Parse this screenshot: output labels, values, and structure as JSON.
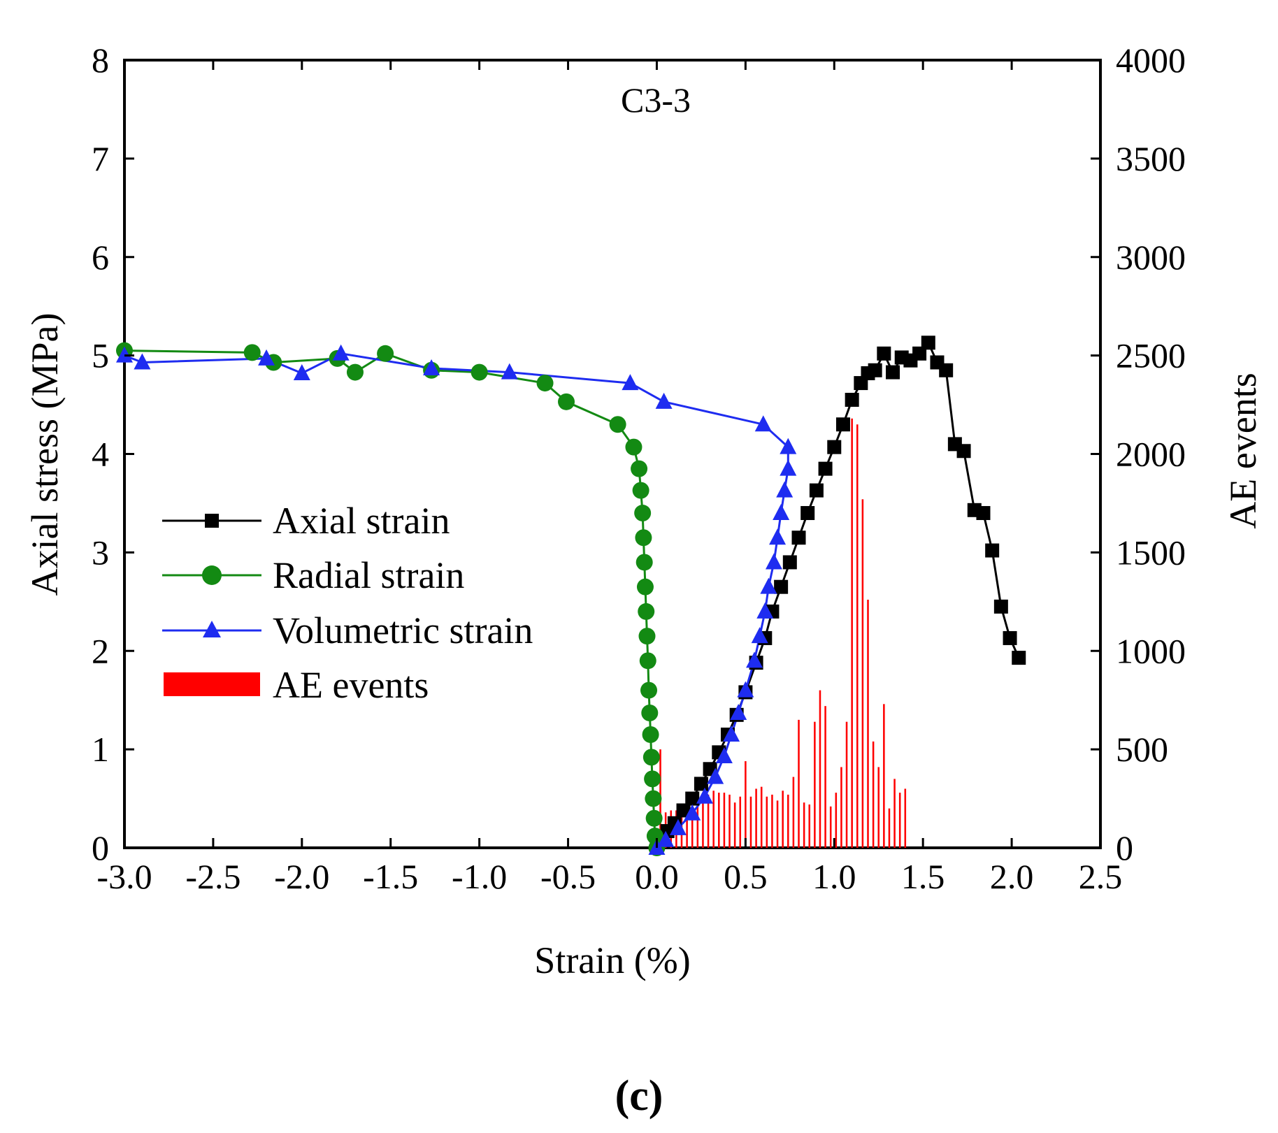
{
  "chart_data": {
    "type": "line+bar",
    "annotation": "C3-3",
    "panel_label": "(c)",
    "xlabel": "Strain (%)",
    "ylabel_left": "Axial stress (MPa)",
    "ylabel_right": "AE events",
    "xlim": [
      -3.0,
      2.5
    ],
    "ylim_left": [
      0,
      8
    ],
    "ylim_right": [
      0,
      4000
    ],
    "x_ticks": [
      -3.0,
      -2.5,
      -2.0,
      -1.5,
      -1.0,
      -0.5,
      0.0,
      0.5,
      1.0,
      1.5,
      2.0,
      2.5
    ],
    "x_tick_labels": [
      "-3.0",
      "-2.5",
      "-2.0",
      "-1.5",
      "-1.0",
      "-0.5",
      "0.0",
      "0.5",
      "1.0",
      "1.5",
      "2.0",
      "2.5"
    ],
    "y_left_ticks": [
      0,
      1,
      2,
      3,
      4,
      5,
      6,
      7,
      8
    ],
    "y_left_tick_labels": [
      "0",
      "1",
      "2",
      "3",
      "4",
      "5",
      "6",
      "7",
      "8"
    ],
    "y_right_ticks": [
      0,
      500,
      1000,
      1500,
      2000,
      2500,
      3000,
      3500,
      4000
    ],
    "y_right_tick_labels": [
      "0",
      "500",
      "1000",
      "1500",
      "2000",
      "2500",
      "3000",
      "3500",
      "4000"
    ],
    "legend": {
      "position": "center-left",
      "entries": [
        "Axial strain",
        "Radial strain",
        "Volumetric strain",
        "AE events"
      ]
    },
    "series": [
      {
        "name": "Axial strain",
        "marker": "square",
        "color": "#000000",
        "points": [
          [
            0.0,
            0.0
          ],
          [
            0.03,
            0.08
          ],
          [
            0.06,
            0.17
          ],
          [
            0.1,
            0.25
          ],
          [
            0.15,
            0.38
          ],
          [
            0.2,
            0.5
          ],
          [
            0.25,
            0.65
          ],
          [
            0.3,
            0.8
          ],
          [
            0.35,
            0.97
          ],
          [
            0.4,
            1.15
          ],
          [
            0.45,
            1.35
          ],
          [
            0.5,
            1.58
          ],
          [
            0.56,
            1.88
          ],
          [
            0.61,
            2.13
          ],
          [
            0.65,
            2.4
          ],
          [
            0.7,
            2.65
          ],
          [
            0.75,
            2.9
          ],
          [
            0.8,
            3.15
          ],
          [
            0.85,
            3.4
          ],
          [
            0.9,
            3.63
          ],
          [
            0.95,
            3.85
          ],
          [
            1.0,
            4.07
          ],
          [
            1.05,
            4.3
          ],
          [
            1.1,
            4.55
          ],
          [
            1.15,
            4.72
          ],
          [
            1.19,
            4.82
          ],
          [
            1.23,
            4.85
          ],
          [
            1.28,
            5.02
          ],
          [
            1.33,
            4.83
          ],
          [
            1.38,
            4.98
          ],
          [
            1.43,
            4.95
          ],
          [
            1.48,
            5.02
          ],
          [
            1.53,
            5.13
          ],
          [
            1.58,
            4.93
          ],
          [
            1.63,
            4.85
          ],
          [
            1.68,
            4.1
          ],
          [
            1.73,
            4.03
          ],
          [
            1.79,
            3.43
          ],
          [
            1.84,
            3.4
          ],
          [
            1.89,
            3.02
          ],
          [
            1.94,
            2.45
          ],
          [
            1.99,
            2.13
          ],
          [
            2.04,
            1.93
          ]
        ]
      },
      {
        "name": "Radial strain",
        "marker": "circle",
        "color": "#138a13",
        "points": [
          [
            -3.0,
            5.05
          ],
          [
            -2.28,
            5.03
          ],
          [
            -2.16,
            4.93
          ],
          [
            -1.8,
            4.97
          ],
          [
            -1.7,
            4.83
          ],
          [
            -1.53,
            5.02
          ],
          [
            -1.27,
            4.85
          ],
          [
            -1.0,
            4.83
          ],
          [
            -0.63,
            4.72
          ],
          [
            -0.51,
            4.53
          ],
          [
            -0.22,
            4.3
          ],
          [
            -0.13,
            4.07
          ],
          [
            -0.1,
            3.85
          ],
          [
            -0.09,
            3.63
          ],
          [
            -0.08,
            3.4
          ],
          [
            -0.075,
            3.15
          ],
          [
            -0.07,
            2.9
          ],
          [
            -0.065,
            2.65
          ],
          [
            -0.06,
            2.4
          ],
          [
            -0.055,
            2.15
          ],
          [
            -0.05,
            1.9
          ],
          [
            -0.045,
            1.6
          ],
          [
            -0.04,
            1.37
          ],
          [
            -0.035,
            1.15
          ],
          [
            -0.03,
            0.92
          ],
          [
            -0.025,
            0.7
          ],
          [
            -0.02,
            0.5
          ],
          [
            -0.015,
            0.3
          ],
          [
            -0.01,
            0.12
          ],
          [
            0.0,
            0.0
          ]
        ]
      },
      {
        "name": "Volumetric strain",
        "marker": "triangle",
        "color": "#1e2cf0",
        "points": [
          [
            -3.0,
            5.0
          ],
          [
            -2.9,
            4.93
          ],
          [
            -2.2,
            4.97
          ],
          [
            -2.0,
            4.82
          ],
          [
            -1.78,
            5.02
          ],
          [
            -1.27,
            4.87
          ],
          [
            -0.83,
            4.83
          ],
          [
            -0.15,
            4.72
          ],
          [
            0.04,
            4.53
          ],
          [
            0.6,
            4.3
          ],
          [
            0.74,
            4.07
          ],
          [
            0.74,
            3.85
          ],
          [
            0.72,
            3.63
          ],
          [
            0.7,
            3.4
          ],
          [
            0.68,
            3.15
          ],
          [
            0.66,
            2.9
          ],
          [
            0.63,
            2.65
          ],
          [
            0.61,
            2.4
          ],
          [
            0.58,
            2.15
          ],
          [
            0.55,
            1.9
          ],
          [
            0.5,
            1.6
          ],
          [
            0.46,
            1.37
          ],
          [
            0.42,
            1.15
          ],
          [
            0.38,
            0.93
          ],
          [
            0.33,
            0.72
          ],
          [
            0.27,
            0.52
          ],
          [
            0.2,
            0.35
          ],
          [
            0.12,
            0.2
          ],
          [
            0.05,
            0.08
          ],
          [
            0.0,
            0.0
          ]
        ]
      },
      {
        "name": "AE events",
        "type": "bar",
        "color": "#ff0000",
        "bar_width": 0.02,
        "points": [
          [
            0.02,
            500
          ],
          [
            0.05,
            180
          ],
          [
            0.08,
            190
          ],
          [
            0.11,
            190
          ],
          [
            0.14,
            210
          ],
          [
            0.17,
            230
          ],
          [
            0.2,
            240
          ],
          [
            0.23,
            220
          ],
          [
            0.26,
            260
          ],
          [
            0.29,
            270
          ],
          [
            0.32,
            290
          ],
          [
            0.35,
            280
          ],
          [
            0.38,
            280
          ],
          [
            0.41,
            270
          ],
          [
            0.44,
            230
          ],
          [
            0.47,
            260
          ],
          [
            0.5,
            440
          ],
          [
            0.53,
            260
          ],
          [
            0.56,
            300
          ],
          [
            0.59,
            310
          ],
          [
            0.62,
            260
          ],
          [
            0.65,
            270
          ],
          [
            0.68,
            240
          ],
          [
            0.71,
            290
          ],
          [
            0.74,
            270
          ],
          [
            0.77,
            360
          ],
          [
            0.8,
            650
          ],
          [
            0.83,
            230
          ],
          [
            0.86,
            220
          ],
          [
            0.89,
            640
          ],
          [
            0.92,
            800
          ],
          [
            0.95,
            720
          ],
          [
            0.98,
            210
          ],
          [
            1.01,
            280
          ],
          [
            1.04,
            410
          ],
          [
            1.07,
            640
          ],
          [
            1.1,
            2180
          ],
          [
            1.13,
            2150
          ],
          [
            1.16,
            1770
          ],
          [
            1.19,
            1260
          ],
          [
            1.22,
            540
          ],
          [
            1.25,
            410
          ],
          [
            1.28,
            730
          ],
          [
            1.31,
            200
          ],
          [
            1.34,
            350
          ],
          [
            1.37,
            280
          ],
          [
            1.4,
            300
          ]
        ]
      }
    ]
  }
}
